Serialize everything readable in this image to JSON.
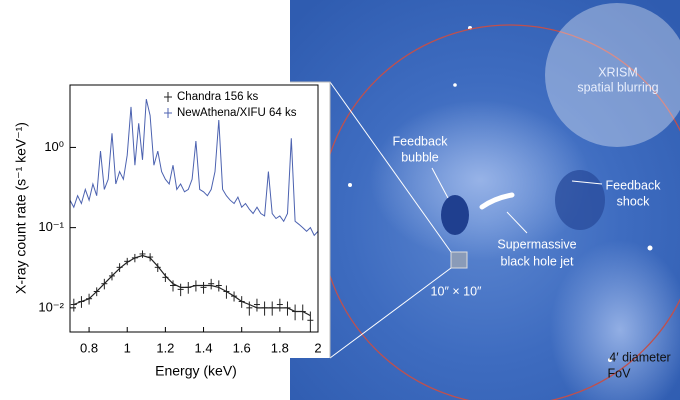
{
  "chart_data": {
    "type": "line",
    "xlabel": "Energy (keV)",
    "ylabel": "X-ray count rate (s⁻¹ keV⁻¹)",
    "xlim": [
      0.7,
      2.0
    ],
    "xticks": [
      0.8,
      1.0,
      1.2,
      1.4,
      1.6,
      1.8,
      2.0
    ],
    "ylim": [
      0.005,
      6
    ],
    "yticks": [
      {
        "value": 0.01,
        "label": "10⁻²"
      },
      {
        "value": 0.1,
        "label": "10⁻¹"
      },
      {
        "value": 1,
        "label": "10⁰"
      }
    ],
    "log_y": true,
    "legend": "upper right",
    "series": [
      {
        "name": "Chandra 156 ks",
        "color": "#222222",
        "x": [
          0.72,
          0.76,
          0.8,
          0.84,
          0.88,
          0.92,
          0.96,
          1.0,
          1.04,
          1.08,
          1.12,
          1.16,
          1.2,
          1.24,
          1.28,
          1.32,
          1.36,
          1.4,
          1.44,
          1.48,
          1.52,
          1.56,
          1.6,
          1.64,
          1.68,
          1.72,
          1.76,
          1.8,
          1.84,
          1.88,
          1.92,
          1.96
        ],
        "values": [
          0.011,
          0.012,
          0.013,
          0.016,
          0.02,
          0.025,
          0.032,
          0.038,
          0.042,
          0.047,
          0.043,
          0.032,
          0.024,
          0.019,
          0.017,
          0.018,
          0.019,
          0.018,
          0.02,
          0.019,
          0.016,
          0.014,
          0.012,
          0.01,
          0.011,
          0.01,
          0.01,
          0.011,
          0.01,
          0.009,
          0.009,
          0.007
        ],
        "errors": [
          0.002,
          0.002,
          0.002,
          0.002,
          0.003,
          0.003,
          0.004,
          0.004,
          0.005,
          0.005,
          0.005,
          0.004,
          0.003,
          0.003,
          0.003,
          0.003,
          0.003,
          0.003,
          0.003,
          0.003,
          0.003,
          0.002,
          0.002,
          0.002,
          0.002,
          0.002,
          0.002,
          0.002,
          0.002,
          0.002,
          0.002,
          0.002
        ]
      },
      {
        "name": "NewAthena/XIFU 64 ks",
        "color": "#4c62b0",
        "x": [
          0.7,
          0.72,
          0.74,
          0.76,
          0.78,
          0.8,
          0.82,
          0.84,
          0.86,
          0.88,
          0.9,
          0.92,
          0.94,
          0.96,
          0.98,
          1.0,
          1.02,
          1.04,
          1.06,
          1.08,
          1.1,
          1.12,
          1.14,
          1.16,
          1.18,
          1.2,
          1.22,
          1.24,
          1.26,
          1.28,
          1.3,
          1.32,
          1.34,
          1.36,
          1.38,
          1.4,
          1.42,
          1.44,
          1.46,
          1.48,
          1.5,
          1.52,
          1.54,
          1.56,
          1.58,
          1.6,
          1.62,
          1.64,
          1.66,
          1.68,
          1.7,
          1.72,
          1.74,
          1.76,
          1.78,
          1.8,
          1.82,
          1.84,
          1.86,
          1.88,
          1.9,
          1.92,
          1.94,
          1.96,
          1.98,
          2.0
        ],
        "values": [
          0.22,
          0.18,
          0.25,
          0.2,
          0.3,
          0.22,
          0.35,
          0.25,
          0.9,
          0.3,
          0.4,
          1.5,
          0.35,
          0.5,
          0.4,
          0.8,
          3.2,
          0.6,
          2.0,
          0.7,
          4.0,
          2.5,
          0.6,
          0.9,
          0.5,
          0.4,
          0.35,
          0.6,
          0.3,
          0.35,
          0.28,
          0.3,
          0.4,
          1.2,
          0.3,
          0.28,
          0.25,
          0.3,
          0.5,
          2.2,
          0.3,
          0.25,
          0.22,
          0.2,
          0.24,
          0.18,
          0.2,
          0.17,
          0.15,
          0.18,
          0.15,
          0.14,
          0.5,
          0.15,
          0.13,
          0.14,
          0.12,
          0.15,
          1.3,
          0.12,
          0.11,
          0.1,
          0.09,
          0.1,
          0.08,
          0.09
        ]
      },
      {
        "color": "#222222",
        "x": [
          0.72,
          0.76,
          0.8,
          0.84,
          0.88,
          0.92,
          0.96,
          1.0,
          1.04,
          1.08,
          1.12,
          1.16,
          1.2,
          1.24,
          1.28,
          1.32,
          1.36,
          1.4,
          1.44,
          1.48,
          1.52,
          1.56,
          1.6,
          1.64,
          1.68,
          1.72,
          1.76,
          1.8,
          1.84,
          1.88,
          1.92,
          1.96
        ],
        "values": [
          0.011,
          0.012,
          0.013,
          0.016,
          0.02,
          0.025,
          0.031,
          0.037,
          0.042,
          0.045,
          0.042,
          0.033,
          0.025,
          0.02,
          0.018,
          0.018,
          0.019,
          0.019,
          0.019,
          0.018,
          0.016,
          0.014,
          0.012,
          0.011,
          0.01,
          0.01,
          0.01,
          0.01,
          0.01,
          0.009,
          0.009,
          0.008
        ]
      }
    ]
  },
  "image": {
    "xrism": [
      "XRISM",
      "spatial blurring"
    ],
    "bubble": [
      "Feedback",
      "bubble"
    ],
    "shock": [
      "Feedback",
      "shock"
    ],
    "jet": [
      "Supermassive",
      "black hole jet"
    ],
    "box": "10″ × 10″",
    "fov": [
      "4′ diameter",
      "FoV"
    ]
  }
}
